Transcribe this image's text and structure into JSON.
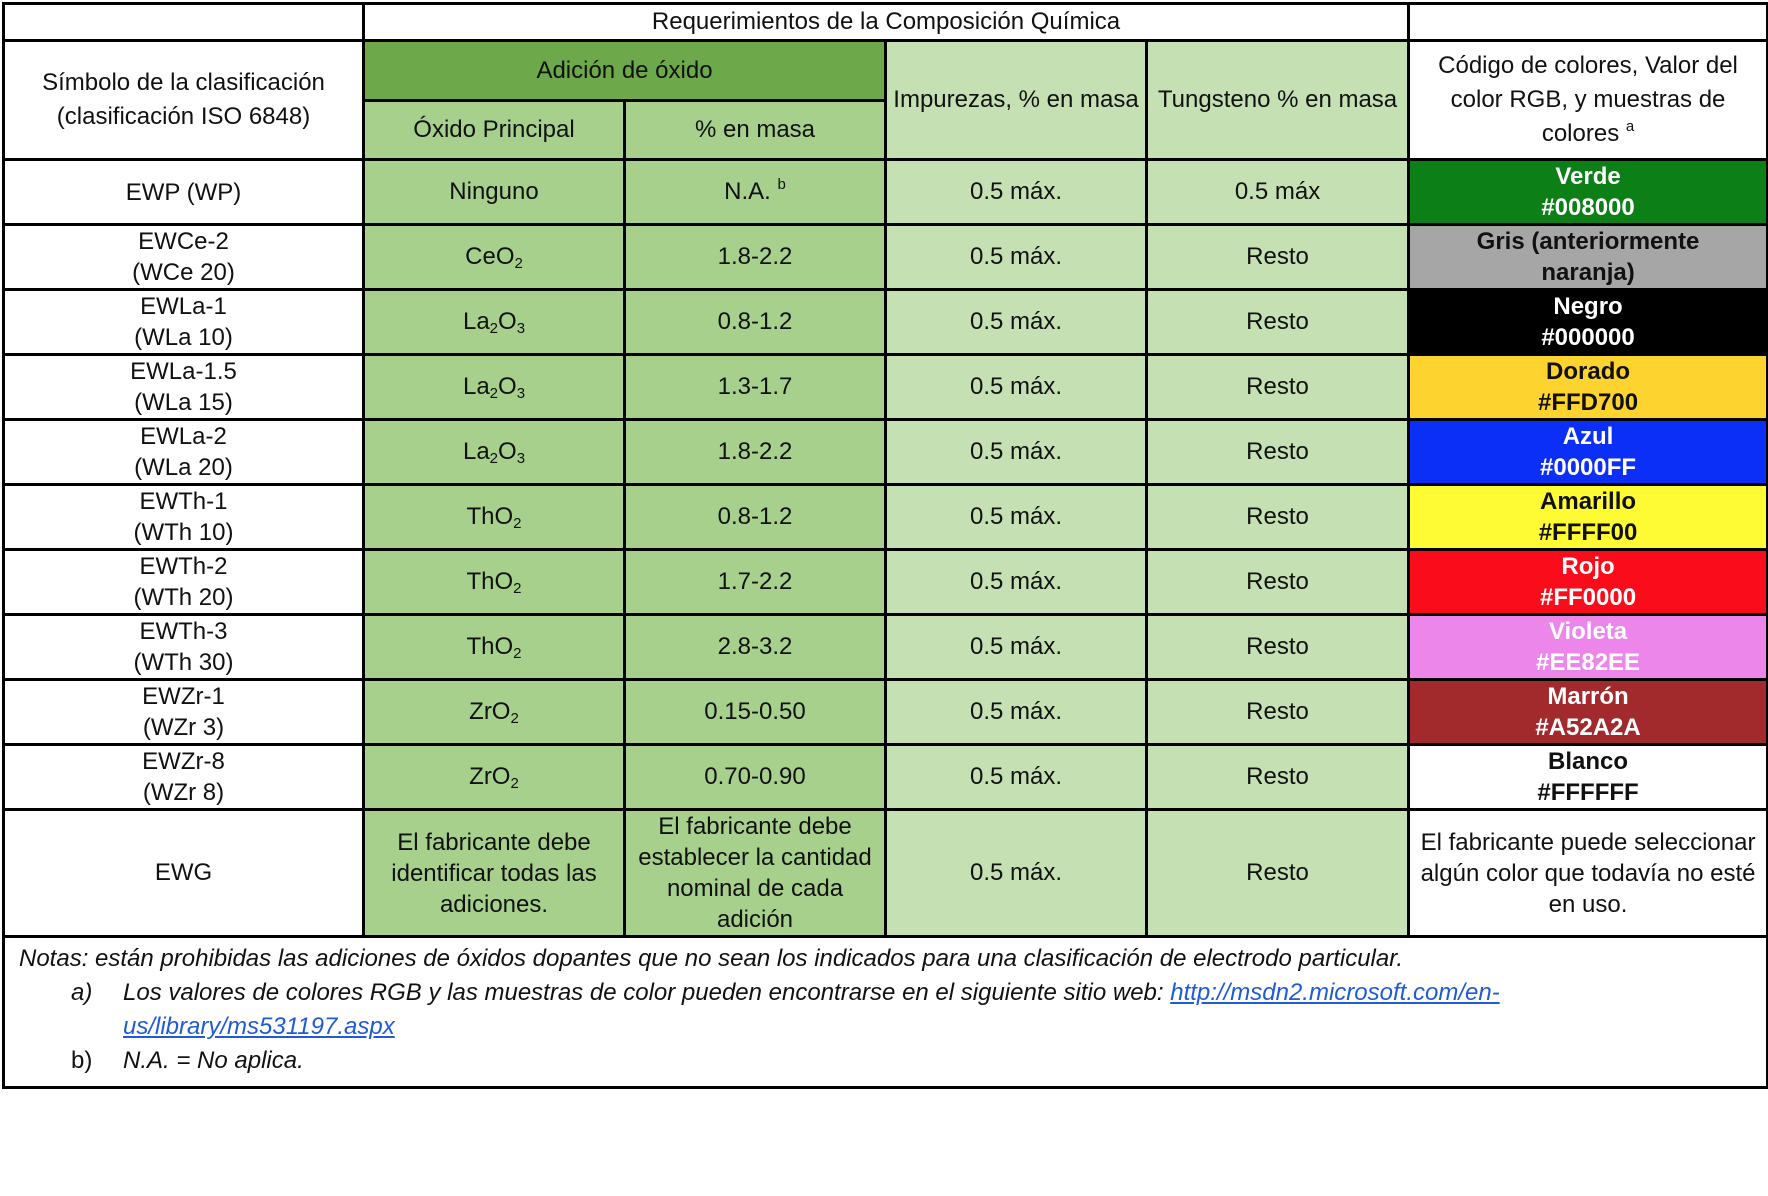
{
  "header": {
    "chem_req": "Requerimientos de la Composición Química",
    "symbol": "Símbolo de la clasificación (clasificación ISO 6848)",
    "oxide_add": "Adición de óxido",
    "oxide_main": "Óxido Principal",
    "mass_pct": "% en masa",
    "impurities": "Impurezas, % en masa",
    "tungsten": "Tungsteno % en masa",
    "color_code": "Código de colores, Valor del color RGB, y muestras de colores",
    "color_code_sup": "a"
  },
  "rows": [
    {
      "symbol_1": "EWP (WP)",
      "symbol_2": "",
      "oxide_base": "Ninguno",
      "oxide_s1": "",
      "oxide_mid": "",
      "oxide_s2": "",
      "mass": "N.A.",
      "mass_sup": "b",
      "impurity": "0.5 máx.",
      "tungsten": "0.5 máx",
      "color_name": "Verde",
      "color_hex": "#008000",
      "bg": "#0d7f17",
      "fg": "#ffffff"
    },
    {
      "symbol_1": "EWCe-2",
      "symbol_2": "(WCe 20)",
      "oxide_base": "CeO",
      "oxide_s1": "2",
      "oxide_mid": "",
      "oxide_s2": "",
      "mass": "1.8-2.2",
      "mass_sup": "",
      "impurity": "0.5 máx.",
      "tungsten": "Resto",
      "color_name": "Gris (anteriormente",
      "color_hex": "naranja)",
      "bg": "#a6a6a6",
      "fg": "#111111"
    },
    {
      "symbol_1": "EWLa-1",
      "symbol_2": "(WLa 10)",
      "oxide_base": "La",
      "oxide_s1": "2",
      "oxide_mid": "O",
      "oxide_s2": "3",
      "mass": "0.8-1.2",
      "mass_sup": "",
      "impurity": "0.5 máx.",
      "tungsten": "Resto",
      "color_name": "Negro",
      "color_hex": "#000000",
      "bg": "#000000",
      "fg": "#ffffff"
    },
    {
      "symbol_1": "EWLa-1.5",
      "symbol_2": "(WLa 15)",
      "oxide_base": "La",
      "oxide_s1": "2",
      "oxide_mid": "O",
      "oxide_s2": "3",
      "mass": "1.3-1.7",
      "mass_sup": "",
      "impurity": "0.5 máx.",
      "tungsten": "Resto",
      "color_name": "Dorado",
      "color_hex": "#FFD700",
      "bg": "#fdd42f",
      "fg": "#111111"
    },
    {
      "symbol_1": "EWLa-2",
      "symbol_2": "(WLa 20)",
      "oxide_base": "La",
      "oxide_s1": "2",
      "oxide_mid": "O",
      "oxide_s2": "3",
      "mass": "1.8-2.2",
      "mass_sup": "",
      "impurity": "0.5 máx.",
      "tungsten": "Resto",
      "color_name": "Azul",
      "color_hex": "#0000FF",
      "bg": "#0b2ff7",
      "fg": "#ffffff"
    },
    {
      "symbol_1": "EWTh-1",
      "symbol_2": "(WTh 10)",
      "oxide_base": "ThO",
      "oxide_s1": "2",
      "oxide_mid": "",
      "oxide_s2": "",
      "mass": "0.8-1.2",
      "mass_sup": "",
      "impurity": "0.5 máx.",
      "tungsten": "Resto",
      "color_name": "Amarillo",
      "color_hex": "#FFFF00",
      "bg": "#fefb34",
      "fg": "#111111"
    },
    {
      "symbol_1": "EWTh-2",
      "symbol_2": "(WTh 20)",
      "oxide_base": "ThO",
      "oxide_s1": "2",
      "oxide_mid": "",
      "oxide_s2": "",
      "mass": "1.7-2.2",
      "mass_sup": "",
      "impurity": "0.5 máx.",
      "tungsten": "Resto",
      "color_name": "Rojo",
      "color_hex": "#FF0000",
      "bg": "#fb0c1a",
      "fg": "#ffffff"
    },
    {
      "symbol_1": "EWTh-3",
      "symbol_2": "(WTh 30)",
      "oxide_base": "ThO",
      "oxide_s1": "2",
      "oxide_mid": "",
      "oxide_s2": "",
      "mass": "2.8-3.2",
      "mass_sup": "",
      "impurity": "0.5 máx.",
      "tungsten": "Resto",
      "color_name": "Violeta",
      "color_hex": "#EE82EE",
      "bg": "#ec86ea",
      "fg": "#ffffff"
    },
    {
      "symbol_1": "EWZr-1",
      "symbol_2": "(WZr 3)",
      "oxide_base": "ZrO",
      "oxide_s1": "2",
      "oxide_mid": "",
      "oxide_s2": "",
      "mass": "0.15-0.50",
      "mass_sup": "",
      "impurity": "0.5 máx.",
      "tungsten": "Resto",
      "color_name": "Marrón",
      "color_hex": "#A52A2A",
      "bg": "#a22a2c",
      "fg": "#ffffff"
    },
    {
      "symbol_1": "EWZr-8",
      "symbol_2": "(WZr 8)",
      "oxide_base": "ZrO",
      "oxide_s1": "2",
      "oxide_mid": "",
      "oxide_s2": "",
      "mass": "0.70-0.90",
      "mass_sup": "",
      "impurity": "0.5 máx.",
      "tungsten": "Resto",
      "color_name": "Blanco",
      "color_hex": "#FFFFFF",
      "bg": "#ffffff",
      "fg": "#111111"
    }
  ],
  "ewg": {
    "symbol": "EWG",
    "oxide": "El fabricante debe identificar todas las adiciones.",
    "mass": "El fabricante debe establecer la cantidad nominal de cada adición",
    "impurity": "0.5 máx.",
    "tungsten": "Resto",
    "color": "El fabricante puede seleccionar algún color que todavía no esté en uso."
  },
  "notes": {
    "intro": "Notas: están prohibidas las adiciones de óxidos dopantes que no sean los indicados para una clasificación de electrodo particular.",
    "a_mark": "a)",
    "a_text": "Los valores de colores RGB y las muestras de color pueden encontrarse en el siguiente sitio web: ",
    "a_link": "http://msdn2.microsoft.com/en-us/library/ms531197.aspx",
    "b_mark": "b)",
    "b_text": "N.A. = No aplica."
  }
}
